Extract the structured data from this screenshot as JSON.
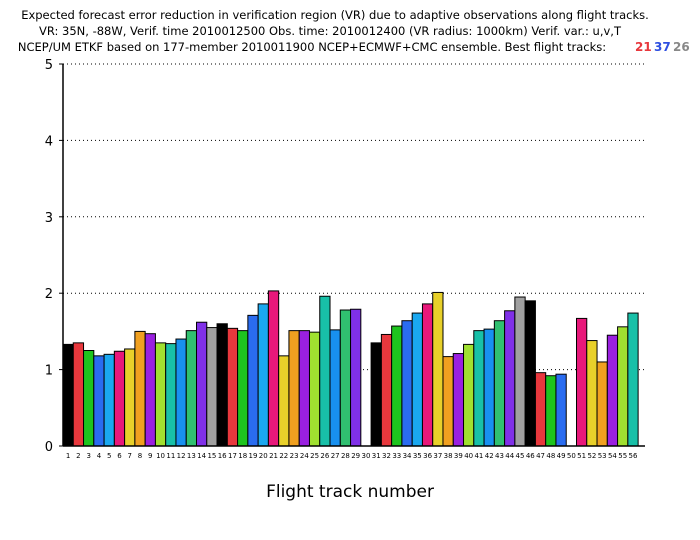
{
  "chart_data": {
    "type": "bar",
    "title_lines": [
      "Expected forecast error reduction in verification region (VR) due to adaptive observations along flight tracks.",
      "VR: 35N, -88W, Verif. time 2010012500 Obs. time: 2010012400 (VR radius: 1000km)  Verif. var.: u,v,T",
      "NCEP/UM ETKF based on 177-member 2010011900 NCEP+ECMWF+CMC ensemble. Best flight tracks:"
    ],
    "best_tracks": [
      {
        "label": "21",
        "color": "#e8383d"
      },
      {
        "label": "37",
        "color": "#2e4fe0"
      },
      {
        "label": "26",
        "color": "#888888"
      }
    ],
    "xlabel": "Flight track number",
    "ylabel": "",
    "ylim": [
      0,
      5
    ],
    "yticks": [
      "0",
      "1",
      "2",
      "3",
      "4",
      "5"
    ],
    "grid": "horizontal-dotted",
    "categories": [
      "1",
      "2",
      "3",
      "4",
      "5",
      "6",
      "7",
      "8",
      "9",
      "10",
      "11",
      "12",
      "13",
      "14",
      "15",
      "16",
      "17",
      "18",
      "19",
      "20",
      "21",
      "22",
      "23",
      "24",
      "25",
      "26",
      "27",
      "28",
      "29",
      "30",
      "31",
      "32",
      "33",
      "34",
      "35",
      "36",
      "37",
      "38",
      "39",
      "40",
      "41",
      "42",
      "43",
      "44",
      "45",
      "46",
      "47",
      "48",
      "49",
      "50",
      "51",
      "52",
      "53",
      "54",
      "55",
      "56"
    ],
    "values": [
      1.33,
      1.35,
      1.25,
      1.18,
      1.2,
      1.24,
      1.27,
      1.5,
      1.47,
      1.35,
      1.34,
      1.4,
      1.51,
      1.62,
      1.55,
      1.6,
      1.54,
      1.51,
      1.71,
      1.86,
      2.03,
      1.18,
      1.51,
      1.51,
      1.49,
      1.96,
      1.52,
      1.78,
      1.79,
      null,
      1.35,
      1.46,
      1.57,
      1.64,
      1.74,
      1.86,
      2.01,
      1.17,
      1.21,
      1.33,
      1.51,
      1.53,
      1.64,
      1.77,
      1.95,
      1.9,
      0.96,
      0.92,
      0.94,
      null,
      1.67,
      1.38,
      1.1,
      1.45,
      1.56,
      1.74
    ],
    "palette": [
      "#000000",
      "#e8383d",
      "#1ec41e",
      "#2a6cf0",
      "#1aa8f0",
      "#e8187a",
      "#e8d02a",
      "#f0a020",
      "#9a20e0",
      "#a0e030",
      "#18c0a8",
      "#1890f0",
      "#30c070",
      "#8030e8",
      "#a0a0a0"
    ]
  }
}
